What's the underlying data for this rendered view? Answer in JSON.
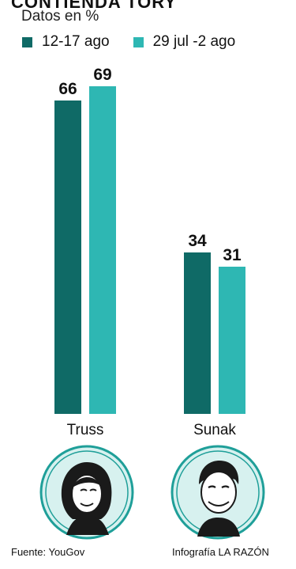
{
  "header": {
    "title_fragment": "CONTIENDA TORY",
    "subtitle": "Datos en %"
  },
  "colors": {
    "series1": "#0f6a66",
    "series2": "#2eb7b3",
    "portrait_bg": "#d7f1ef",
    "portrait_ring": "#1f9f99"
  },
  "chart_data": {
    "type": "bar",
    "categories": [
      "Truss",
      "Sunak"
    ],
    "series": [
      {
        "name": "12-17 ago",
        "values": [
          66,
          34
        ]
      },
      {
        "name": "29 jul -2 ago",
        "values": [
          69,
          31
        ]
      }
    ],
    "data_labels": [
      [
        "66",
        "34"
      ],
      [
        "69",
        "31"
      ]
    ],
    "ylim": [
      0,
      100
    ],
    "legend": "top-left",
    "grid": false
  },
  "portraits": [
    {
      "icon": "truss-portrait-icon"
    },
    {
      "icon": "sunak-portrait-icon"
    }
  ],
  "footer": {
    "source": "Fuente: YouGov",
    "credit": "Infografía LA RAZÓN"
  }
}
